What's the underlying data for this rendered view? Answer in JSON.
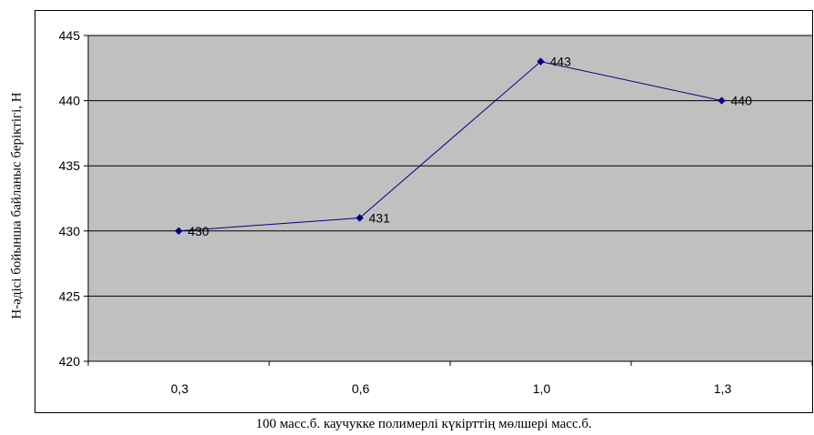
{
  "chart_data": {
    "type": "line",
    "categories": [
      "0,3",
      "0,6",
      "1,0",
      "1,3"
    ],
    "series": [
      {
        "values": [
          430,
          431,
          443,
          440
        ]
      }
    ],
    "data_labels": [
      "430",
      "431",
      "443",
      "440"
    ],
    "y_ticks": [
      "420",
      "425",
      "430",
      "435",
      "440",
      "445"
    ],
    "ylim": [
      420,
      445
    ],
    "xlabel": "100 масс.б. каучукке полимерлі күкірттің мөлшері масс.б.",
    "ylabel": "Н-әдісі бойынша байланыс беріктігі, Н",
    "grid": "horizontal",
    "legend": "none",
    "colors": {
      "plot_background": "#c0c0c0",
      "line": "#000080",
      "gridline": "#000000"
    }
  }
}
